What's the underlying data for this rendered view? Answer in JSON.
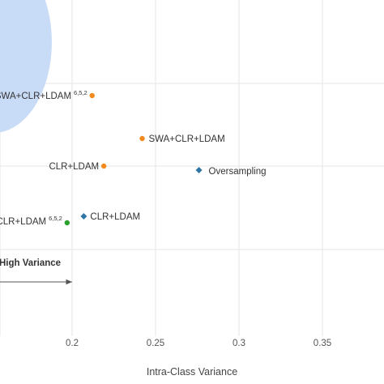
{
  "chart_data": {
    "type": "scatter",
    "xlabel": "Intra-Class Variance",
    "ylabel": "",
    "x_ticks": [
      "0.2",
      "0.25",
      "0.3",
      "0.35"
    ],
    "grid": true,
    "points": [
      {
        "name": "SWA+CLR+LDAM",
        "sup": "6,5,2",
        "x": 0.212,
        "y": 118,
        "shape": "circle",
        "color": "#f28a1e"
      },
      {
        "name": "SWA+CLR+LDAM",
        "sup": "",
        "x": 0.242,
        "y": 171,
        "shape": "circle",
        "color": "#f28a1e"
      },
      {
        "name": "CLR+LDAM",
        "sup": "",
        "x": 0.219,
        "y": 205,
        "shape": "circle",
        "color": "#f28a1e"
      },
      {
        "name": "Oversampling",
        "sup": "",
        "x": 0.276,
        "y": 210,
        "shape": "diamond",
        "color": "#2f76a6"
      },
      {
        "name": "CLR+LDAM",
        "sup": "",
        "x": 0.207,
        "y": 267,
        "shape": "diamond",
        "color": "#2f76a6"
      },
      {
        "name": "CLR+LDAM",
        "sup": "6,5,2",
        "x": 0.197,
        "y": 275,
        "shape": "circle",
        "color": "#2ca02c"
      }
    ],
    "annotations": [
      {
        "text": "High Variance"
      }
    ],
    "region_color": "#c9dcf7"
  }
}
